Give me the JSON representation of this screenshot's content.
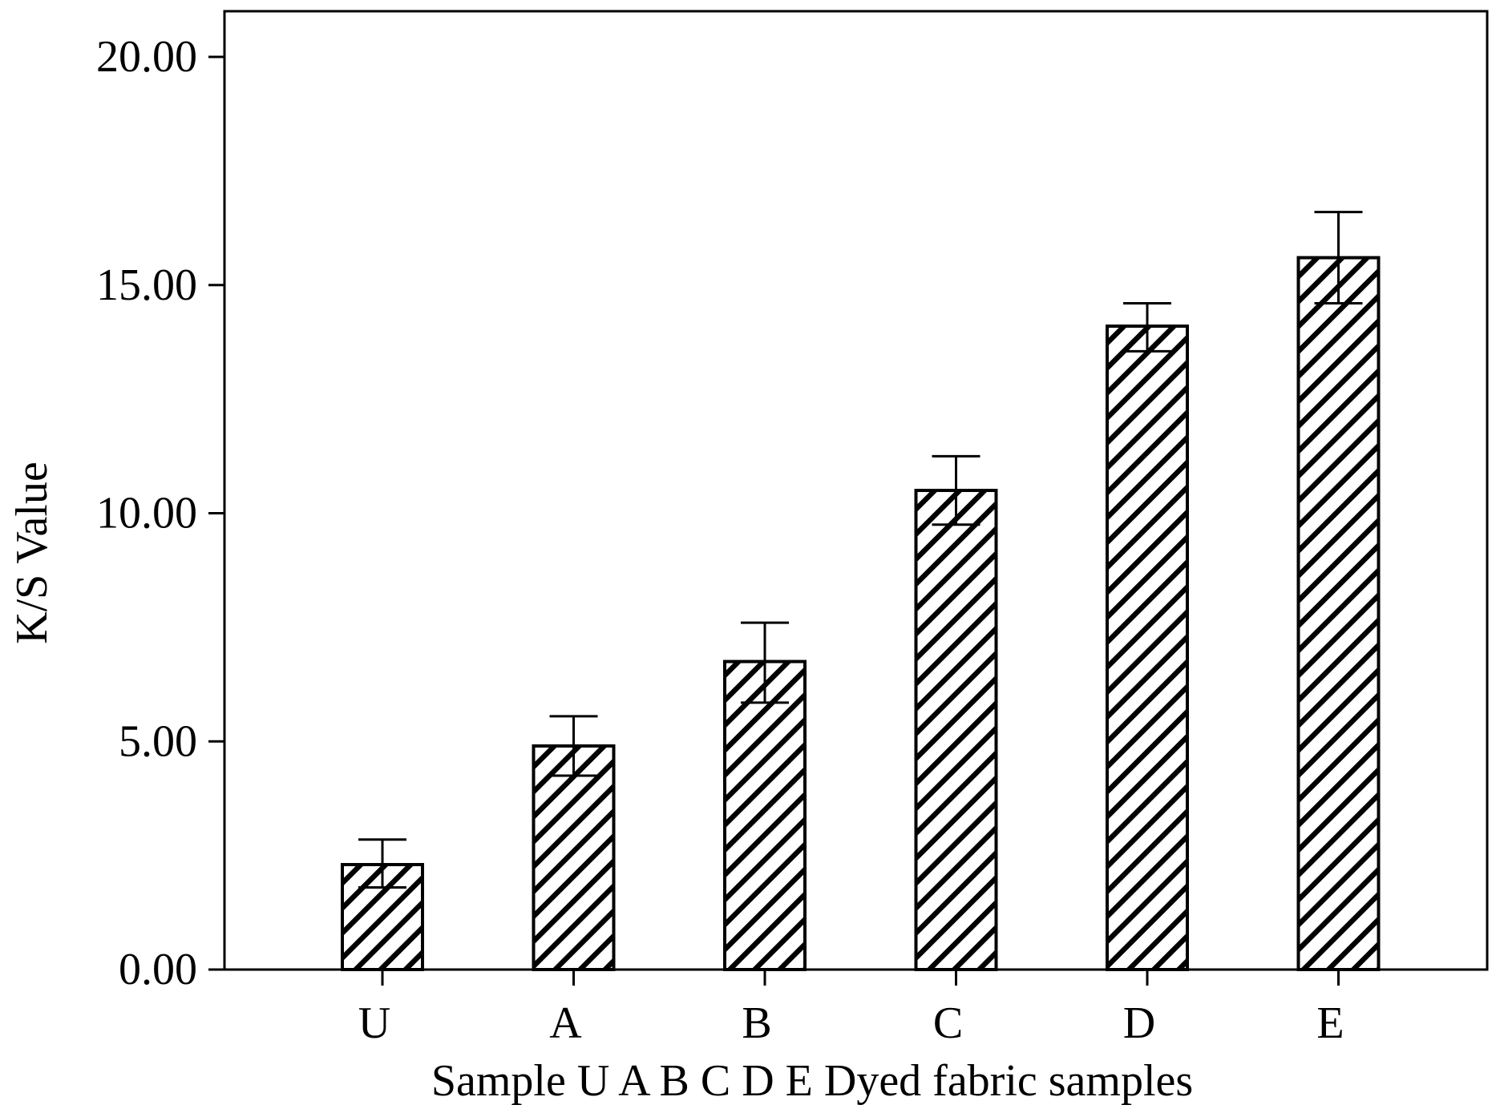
{
  "chart_data": {
    "type": "bar",
    "title": "",
    "xlabel": "Sample U A B C D E Dyed fabric samples",
    "ylabel": "K/S Value",
    "categories": [
      "U",
      "A",
      "B",
      "C",
      "D",
      "E"
    ],
    "values": [
      2.3,
      4.9,
      6.75,
      10.5,
      14.1,
      15.6
    ],
    "error_upper": [
      2.85,
      5.55,
      7.6,
      11.25,
      14.6,
      16.6
    ],
    "error_lower": [
      1.8,
      4.25,
      5.85,
      9.75,
      13.55,
      14.6
    ],
    "ylim": [
      0,
      20
    ],
    "yticks": [
      "0.00",
      "5.00",
      "10.00",
      "15.00",
      "20.00"
    ],
    "ytick_values": [
      0,
      5,
      10,
      15,
      20
    ],
    "grid": false,
    "bar_pattern": "diagonal-hatch",
    "colors": {
      "bar_fill": "#ffffff",
      "hatch": "#000000",
      "axis": "#000000"
    }
  }
}
